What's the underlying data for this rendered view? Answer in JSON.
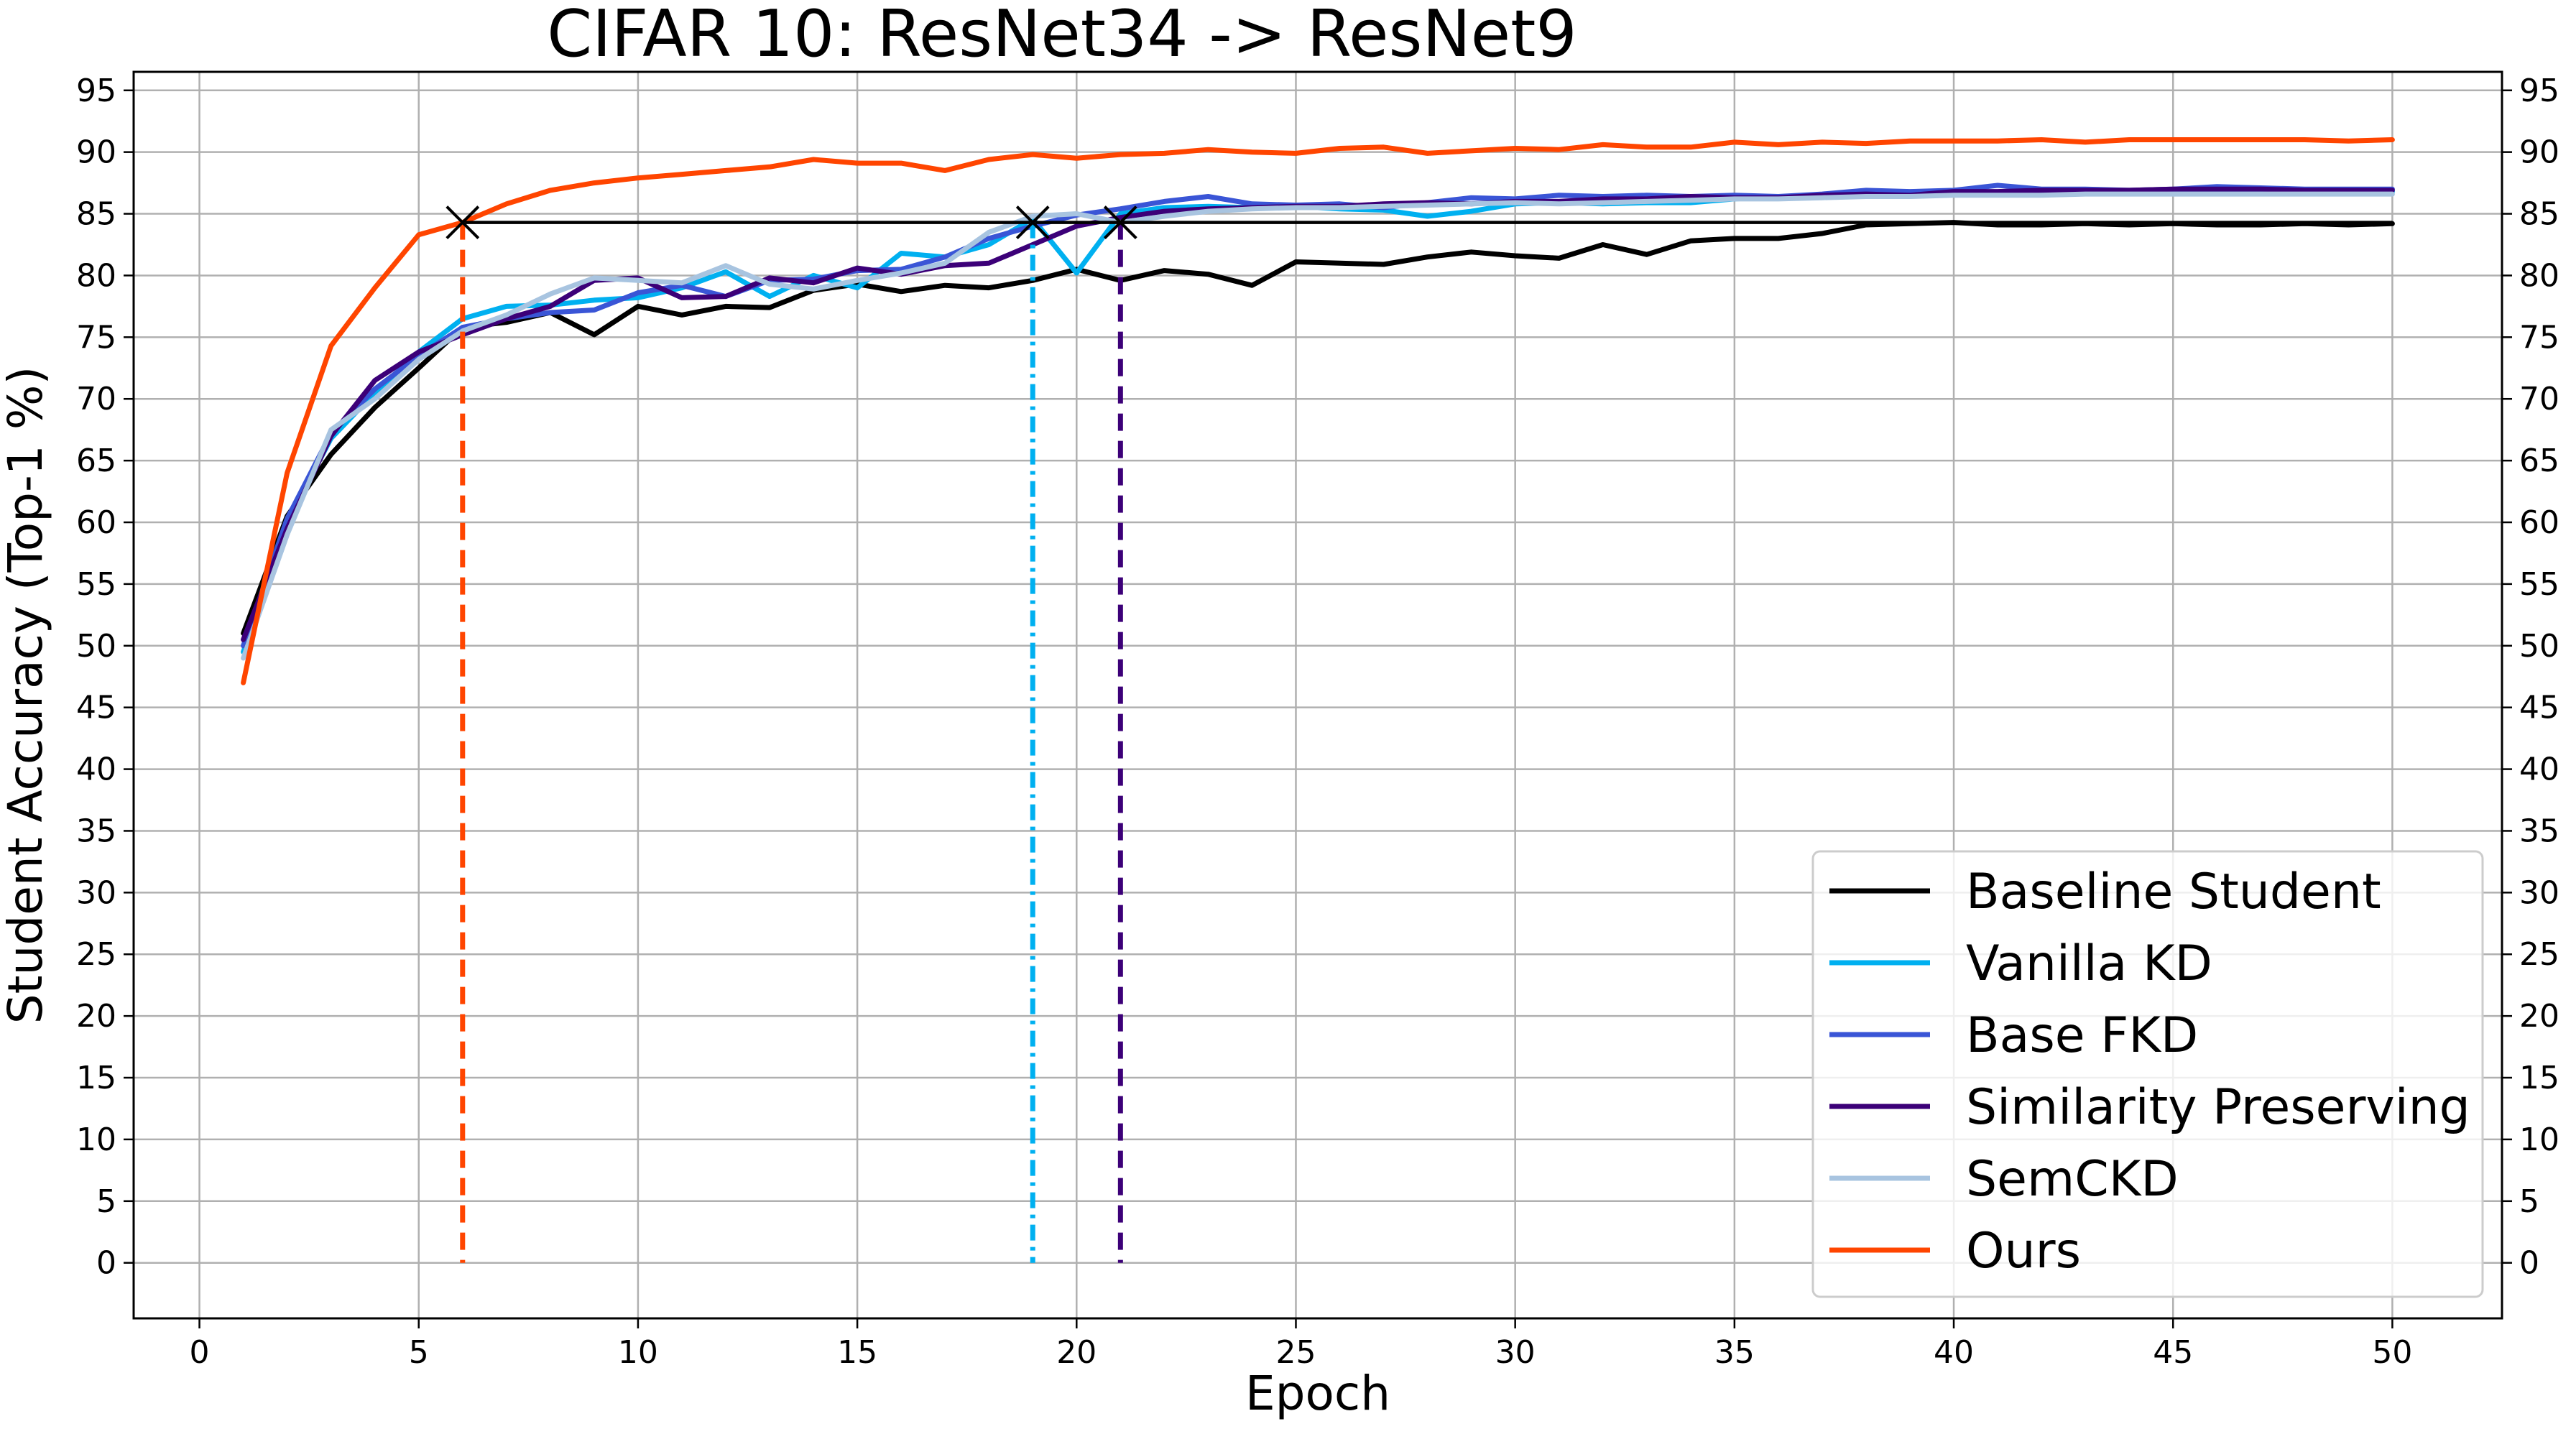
{
  "chart_data": {
    "type": "line",
    "title": "CIFAR 10: ResNet34 -> ResNet9",
    "xlabel": "Epoch",
    "ylabel": "Student Accuracy (Top-1 %)",
    "xlim": [
      -1.5,
      52.5
    ],
    "ylim": [
      -4.5,
      96.5
    ],
    "xticks": [
      0,
      5,
      10,
      15,
      20,
      25,
      30,
      35,
      40,
      45,
      50
    ],
    "yticks": [
      0,
      5,
      10,
      15,
      20,
      25,
      30,
      35,
      40,
      45,
      50,
      55,
      60,
      65,
      70,
      75,
      80,
      85,
      90,
      95
    ],
    "grid": true,
    "legend_position": "lower-right",
    "x": [
      1,
      2,
      3,
      4,
      5,
      6,
      7,
      8,
      9,
      10,
      11,
      12,
      13,
      14,
      15,
      16,
      17,
      18,
      19,
      20,
      21,
      22,
      23,
      24,
      25,
      26,
      27,
      28,
      29,
      30,
      31,
      32,
      33,
      34,
      35,
      36,
      37,
      38,
      39,
      40,
      41,
      42,
      43,
      44,
      45,
      46,
      47,
      48,
      49,
      50
    ],
    "series": [
      {
        "name": "Baseline Student",
        "color": "#000000",
        "values": [
          51.0,
          60.5,
          65.5,
          69.3,
          72.5,
          75.8,
          76.2,
          77.0,
          75.2,
          77.5,
          76.8,
          77.5,
          77.4,
          78.8,
          79.3,
          78.7,
          79.2,
          79.0,
          79.6,
          80.5,
          79.6,
          80.4,
          80.1,
          79.2,
          81.1,
          81.0,
          80.9,
          81.5,
          81.9,
          81.6,
          81.4,
          82.5,
          81.7,
          82.8,
          83.0,
          83.0,
          83.4,
          84.1,
          84.2,
          84.3,
          84.1,
          84.1,
          84.2,
          84.1,
          84.2,
          84.1,
          84.1,
          84.2,
          84.1,
          84.2
        ]
      },
      {
        "name": "Vanilla KD",
        "color": "#00b0f0",
        "values": [
          49.5,
          60.0,
          66.8,
          70.5,
          73.8,
          76.5,
          77.5,
          77.6,
          78.0,
          78.2,
          79.0,
          80.3,
          78.3,
          80.0,
          79.0,
          81.8,
          81.5,
          82.5,
          84.6,
          80.2,
          85.0,
          85.5,
          85.6,
          85.5,
          85.6,
          85.4,
          85.3,
          84.8,
          85.2,
          85.8,
          85.9,
          85.8,
          85.9,
          85.9,
          86.2,
          86.4,
          86.4,
          86.4,
          86.5,
          86.7,
          86.7,
          86.7,
          86.7,
          86.8,
          86.8,
          86.7,
          86.7,
          86.8,
          86.8,
          86.8
        ]
      },
      {
        "name": "Base FKD",
        "color": "#3a55d6",
        "values": [
          50.0,
          60.3,
          67.2,
          70.8,
          73.5,
          75.8,
          76.5,
          77.0,
          77.2,
          78.6,
          79.2,
          78.3,
          79.6,
          79.7,
          80.4,
          80.5,
          81.5,
          83.0,
          84.0,
          84.9,
          85.4,
          86.0,
          86.4,
          85.8,
          85.7,
          85.8,
          85.5,
          85.9,
          86.3,
          86.2,
          86.5,
          86.4,
          86.5,
          86.4,
          86.5,
          86.4,
          86.6,
          86.9,
          86.8,
          86.9,
          87.3,
          87.0,
          87.0,
          86.9,
          87.0,
          87.2,
          87.1,
          87.0,
          87.0,
          87.0
        ]
      },
      {
        "name": "Similarity Preserving",
        "color": "#3c0078",
        "values": [
          50.5,
          59.5,
          67.0,
          71.5,
          73.8,
          75.2,
          76.5,
          77.5,
          79.6,
          79.8,
          78.2,
          78.3,
          79.8,
          79.4,
          80.6,
          80.1,
          80.8,
          81.0,
          82.5,
          84.0,
          84.7,
          85.2,
          85.4,
          85.5,
          85.6,
          85.6,
          85.8,
          85.9,
          85.8,
          86.0,
          86.0,
          86.2,
          86.2,
          86.4,
          86.3,
          86.3,
          86.5,
          86.6,
          86.5,
          86.8,
          86.8,
          86.9,
          86.9,
          86.9,
          87.0,
          87.0,
          87.0,
          86.9,
          86.9,
          86.9
        ]
      },
      {
        "name": "SemCKD",
        "color": "#a8c4e0",
        "values": [
          49.0,
          59.0,
          67.5,
          70.0,
          73.2,
          75.5,
          76.8,
          78.5,
          79.8,
          79.6,
          79.4,
          80.8,
          79.3,
          78.9,
          79.6,
          80.2,
          81.0,
          83.5,
          84.8,
          85.0,
          84.3,
          84.8,
          85.2,
          85.4,
          85.5,
          85.5,
          85.6,
          85.7,
          85.8,
          85.9,
          85.8,
          85.9,
          86.0,
          86.1,
          86.2,
          86.2,
          86.3,
          86.4,
          86.4,
          86.5,
          86.5,
          86.5,
          86.6,
          86.6,
          86.6,
          86.6,
          86.6,
          86.6,
          86.6,
          86.6
        ]
      },
      {
        "name": "Ours",
        "color": "#ff4500",
        "values": [
          47.0,
          64.0,
          74.3,
          79.0,
          83.3,
          84.3,
          85.8,
          86.9,
          87.5,
          87.9,
          88.2,
          88.5,
          88.8,
          89.4,
          89.1,
          89.1,
          88.5,
          89.4,
          89.8,
          89.5,
          89.8,
          89.9,
          90.2,
          90.0,
          89.9,
          90.3,
          90.4,
          89.9,
          90.1,
          90.3,
          90.2,
          90.6,
          90.4,
          90.4,
          90.8,
          90.6,
          90.8,
          90.7,
          90.9,
          90.9,
          90.9,
          91.0,
          90.8,
          91.0,
          91.0,
          91.0,
          91.0,
          91.0,
          90.9,
          91.0
        ]
      }
    ],
    "reference_line": {
      "value": 84.3,
      "from_x": 6,
      "to_x": 50,
      "color": "#000000"
    },
    "markers": [
      {
        "x": 6,
        "y": 84.3,
        "symbol": "x",
        "drop_color": "#ff4500",
        "drop_style": "dashed"
      },
      {
        "x": 19,
        "y": 84.3,
        "symbol": "x",
        "drop_color": "#00b0f0",
        "drop_style": "dashdot"
      },
      {
        "x": 21,
        "y": 84.3,
        "symbol": "x",
        "drop_color": "#3c0078",
        "drop_style": "dashed"
      }
    ]
  }
}
